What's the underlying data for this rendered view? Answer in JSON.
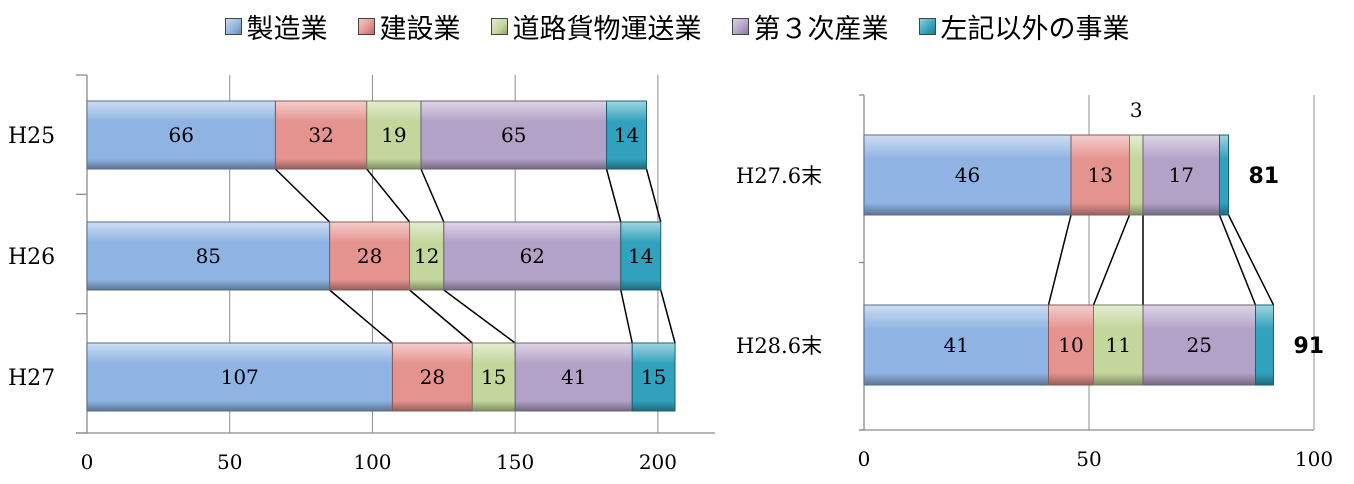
{
  "legend": {
    "placement": "top",
    "items": [
      {
        "label": "製造業",
        "color": "#8fb4e3"
      },
      {
        "label": "建設業",
        "color": "#e5938f"
      },
      {
        "label": "道路貨物運送業",
        "color": "#c3d69b"
      },
      {
        "label": "第３次産業",
        "color": "#b3a2c7"
      },
      {
        "label": "左記以外の事業",
        "color": "#31a1bd"
      }
    ]
  },
  "chart_data": [
    {
      "type": "bar",
      "orientation": "horizontal",
      "stacked": true,
      "title": "",
      "xlabel": "",
      "ylabel": "",
      "categories": [
        "H25",
        "H26",
        "H27"
      ],
      "series": [
        {
          "name": "製造業",
          "values": [
            66,
            85,
            107
          ]
        },
        {
          "name": "建設業",
          "values": [
            32,
            28,
            28
          ]
        },
        {
          "name": "道路貨物運送業",
          "values": [
            19,
            12,
            15
          ]
        },
        {
          "name": "第３次産業",
          "values": [
            65,
            62,
            41
          ]
        },
        {
          "name": "左記以外の事業",
          "values": [
            14,
            14,
            15
          ]
        }
      ],
      "xlim": [
        0,
        220
      ],
      "xticks": [
        0,
        50,
        100,
        150,
        200
      ],
      "grid": true,
      "series_lines": true,
      "totals": []
    },
    {
      "type": "bar",
      "orientation": "horizontal",
      "stacked": true,
      "title": "",
      "xlabel": "",
      "ylabel": "",
      "categories": [
        "H27.6末",
        "H28.6末"
      ],
      "series": [
        {
          "name": "製造業",
          "values": [
            46,
            41
          ]
        },
        {
          "name": "建設業",
          "values": [
            13,
            10
          ]
        },
        {
          "name": "道路貨物運送業",
          "values": [
            3,
            11
          ]
        },
        {
          "name": "第３次産業",
          "values": [
            17,
            25
          ]
        },
        {
          "name": "左記以外の事業",
          "values": [
            2,
            4
          ]
        }
      ],
      "data_labels": [
        [
          "46",
          "13",
          "3",
          "17",
          ""
        ],
        [
          "41",
          "10",
          "11",
          "25",
          ""
        ]
      ],
      "totals": [
        "81",
        "91"
      ],
      "xlim": [
        0,
        100
      ],
      "xticks": [
        0,
        50,
        100
      ],
      "grid": true,
      "series_lines": true
    }
  ]
}
